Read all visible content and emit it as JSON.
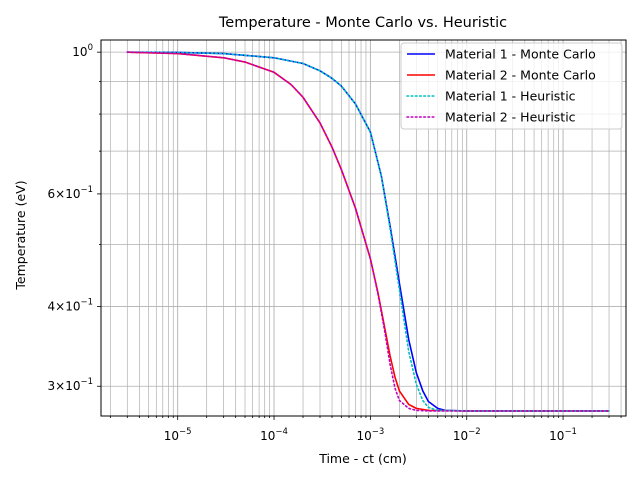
{
  "chart_data": {
    "type": "line",
    "title": "Temperature - Monte Carlo vs. Heuristic",
    "xlabel": "Time - ct (cm)",
    "ylabel": "Temperature (eV)",
    "xscale": "log",
    "yscale": "log",
    "xlim": [
      1.6e-06,
      0.45
    ],
    "ylim": [
      0.2695,
      1.0448
    ],
    "grid": "on (major and minor)",
    "legend_position": "top-right",
    "x_ticks": [
      {
        "value": 1e-05,
        "base": "10",
        "exp": "−5"
      },
      {
        "value": 0.0001,
        "base": "10",
        "exp": "−4"
      },
      {
        "value": 0.001,
        "base": "10",
        "exp": "−3"
      },
      {
        "value": 0.01,
        "base": "10",
        "exp": "−2"
      },
      {
        "value": 0.1,
        "base": "10",
        "exp": "−1"
      }
    ],
    "y_ticks": [
      {
        "value": 1.0,
        "mantissa": "",
        "base": "10",
        "exp": "0"
      },
      {
        "value": 0.6,
        "mantissa": "6×",
        "base": "10",
        "exp": "−1"
      },
      {
        "value": 0.4,
        "mantissa": "4×",
        "base": "10",
        "exp": "−1"
      },
      {
        "value": 0.3,
        "mantissa": "3×",
        "base": "10",
        "exp": "−1"
      }
    ],
    "series": [
      {
        "name": "Material 1 - Monte Carlo",
        "color": "#0000ff",
        "style": "solid",
        "points": [
          [
            3e-06,
            1.0
          ],
          [
            1e-05,
            0.999
          ],
          [
            3e-05,
            0.995
          ],
          [
            0.0001,
            0.98
          ],
          [
            0.0002,
            0.96
          ],
          [
            0.0003,
            0.935
          ],
          [
            0.0004,
            0.91
          ],
          [
            0.0005,
            0.885
          ],
          [
            0.0007,
            0.83
          ],
          [
            0.001,
            0.75
          ],
          [
            0.0013,
            0.64
          ],
          [
            0.0016,
            0.535
          ],
          [
            0.002,
            0.435
          ],
          [
            0.0025,
            0.355
          ],
          [
            0.003,
            0.315
          ],
          [
            0.0035,
            0.295
          ],
          [
            0.004,
            0.284
          ],
          [
            0.005,
            0.277
          ],
          [
            0.006,
            0.275
          ],
          [
            0.01,
            0.2745
          ],
          [
            0.3,
            0.2745
          ]
        ]
      },
      {
        "name": "Material 2 - Monte Carlo",
        "color": "#ff0000",
        "style": "solid",
        "points": [
          [
            3e-06,
            1.0
          ],
          [
            1e-05,
            0.995
          ],
          [
            3e-05,
            0.98
          ],
          [
            5e-05,
            0.965
          ],
          [
            0.0001,
            0.93
          ],
          [
            0.00015,
            0.89
          ],
          [
            0.0002,
            0.85
          ],
          [
            0.0003,
            0.775
          ],
          [
            0.0004,
            0.71
          ],
          [
            0.0005,
            0.655
          ],
          [
            0.0007,
            0.57
          ],
          [
            0.001,
            0.475
          ],
          [
            0.0012,
            0.42
          ],
          [
            0.0014,
            0.372
          ],
          [
            0.0016,
            0.335
          ],
          [
            0.0018,
            0.31
          ],
          [
            0.002,
            0.295
          ],
          [
            0.0025,
            0.281
          ],
          [
            0.003,
            0.277
          ],
          [
            0.004,
            0.275
          ],
          [
            0.01,
            0.2745
          ],
          [
            0.3,
            0.2745
          ]
        ]
      },
      {
        "name": "Material 1 - Heuristic",
        "color": "#00bfbf",
        "style": "dotted",
        "points": [
          [
            3e-06,
            1.0
          ],
          [
            1e-05,
            0.999
          ],
          [
            3e-05,
            0.995
          ],
          [
            0.0001,
            0.98
          ],
          [
            0.0002,
            0.96
          ],
          [
            0.0003,
            0.935
          ],
          [
            0.0004,
            0.91
          ],
          [
            0.0005,
            0.885
          ],
          [
            0.0007,
            0.83
          ],
          [
            0.001,
            0.75
          ],
          [
            0.0013,
            0.64
          ],
          [
            0.0016,
            0.53
          ],
          [
            0.002,
            0.425
          ],
          [
            0.0025,
            0.34
          ],
          [
            0.003,
            0.302
          ],
          [
            0.0035,
            0.285
          ],
          [
            0.004,
            0.278
          ],
          [
            0.005,
            0.275
          ],
          [
            0.01,
            0.2745
          ],
          [
            0.3,
            0.2745
          ]
        ]
      },
      {
        "name": "Material 2 - Heuristic",
        "color": "#bf00bf",
        "style": "dotted",
        "points": [
          [
            3e-06,
            1.0
          ],
          [
            1e-05,
            0.995
          ],
          [
            3e-05,
            0.98
          ],
          [
            5e-05,
            0.965
          ],
          [
            0.0001,
            0.93
          ],
          [
            0.00015,
            0.89
          ],
          [
            0.0002,
            0.85
          ],
          [
            0.0003,
            0.775
          ],
          [
            0.0004,
            0.71
          ],
          [
            0.0005,
            0.655
          ],
          [
            0.0007,
            0.57
          ],
          [
            0.001,
            0.475
          ],
          [
            0.0012,
            0.418
          ],
          [
            0.0014,
            0.368
          ],
          [
            0.0016,
            0.325
          ],
          [
            0.0018,
            0.298
          ],
          [
            0.002,
            0.285
          ],
          [
            0.0025,
            0.277
          ],
          [
            0.003,
            0.275
          ],
          [
            0.004,
            0.2745
          ],
          [
            0.3,
            0.2745
          ]
        ]
      }
    ]
  }
}
